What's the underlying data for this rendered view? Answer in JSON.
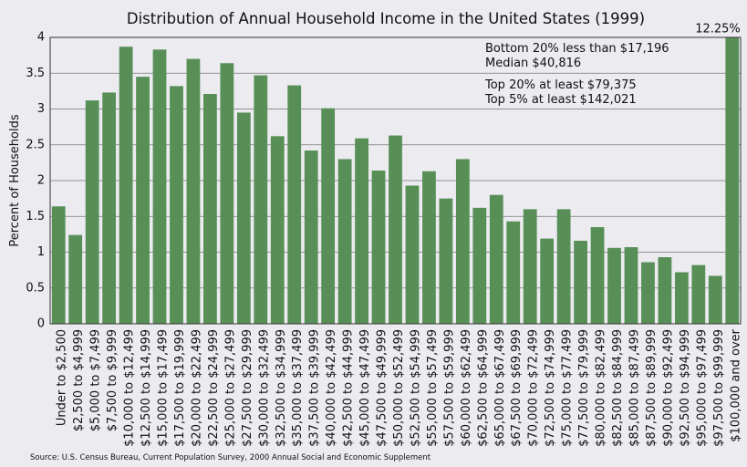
{
  "chart_data": {
    "type": "bar",
    "title": "Distribution of Annual Household Income in the United States (1999)",
    "y_label": "Percent of Households",
    "source": "Source: U.S. Census Bureau, Current Population Survey, 2000 Annual Social and Economic Supplement",
    "annotations": [
      "Bottom 20% less than $17,196",
      "Median $40,816",
      "Top 20% at least $79,375",
      "Top 5% at least $142,021"
    ],
    "categories": [
      "Under to $2,500",
      "$2,500 to $4,999",
      "$5,000 to $7,499",
      "$7,500 to $9,999",
      "$10,000 to $12,499",
      "$12,500 to $14,999",
      "$15,000 to $17,499",
      "$17,500 to $19,999",
      "$20,000 to $22,499",
      "$22,500 to $24,999",
      "$25,000 to $27,499",
      "$27,500 to $29,999",
      "$30,000 to $32,499",
      "$32,500 to $34,999",
      "$35,000 to $37,499",
      "$37,500 to $39,999",
      "$40,000 to $42,499",
      "$42,500 to $44,999",
      "$45,000 to $47,499",
      "$47,500 to $49,999",
      "$50,000 to $52,499",
      "$52,500 to $54,999",
      "$55,000 to $57,499",
      "$57,500 to $59,999",
      "$60,000 to $62,499",
      "$62,500 to $64,999",
      "$65,000 to $67,499",
      "$67,500 to $69,999",
      "$70,000 to $72,499",
      "$72,500 to $74,999",
      "$75,000 to $77,499",
      "$77,500 to $79,999",
      "$80,000 to $82,499",
      "$82,500 to $84,999",
      "$85,000 to $87,499",
      "$87,500 to $89,999",
      "$90,000 to $92,499",
      "$92,500 to $94,999",
      "$95,000 to $97,499",
      "$97,500 to $99,999",
      "$100,000 and over"
    ],
    "values": [
      1.64,
      1.24,
      3.12,
      3.23,
      3.87,
      3.45,
      3.83,
      3.32,
      3.7,
      3.21,
      3.64,
      2.95,
      3.47,
      2.62,
      3.33,
      2.42,
      3.01,
      2.3,
      2.59,
      2.14,
      2.63,
      1.93,
      2.13,
      1.75,
      2.3,
      1.62,
      1.8,
      1.43,
      1.6,
      1.19,
      1.6,
      1.16,
      1.35,
      1.06,
      1.07,
      0.86,
      0.93,
      0.72,
      0.82,
      0.67,
      12.25
    ],
    "value_labels": [
      null,
      null,
      null,
      null,
      null,
      null,
      null,
      null,
      null,
      null,
      null,
      null,
      null,
      null,
      null,
      null,
      null,
      null,
      null,
      null,
      null,
      null,
      null,
      null,
      null,
      null,
      null,
      null,
      null,
      null,
      null,
      null,
      null,
      null,
      null,
      null,
      null,
      null,
      null,
      null,
      "12.25%"
    ],
    "color": "#578f56",
    "ylim": [
      0,
      4
    ],
    "yticks": [
      0,
      0.5,
      1,
      1.5,
      2,
      2.5,
      3,
      3.5,
      4
    ],
    "grid": true
  }
}
